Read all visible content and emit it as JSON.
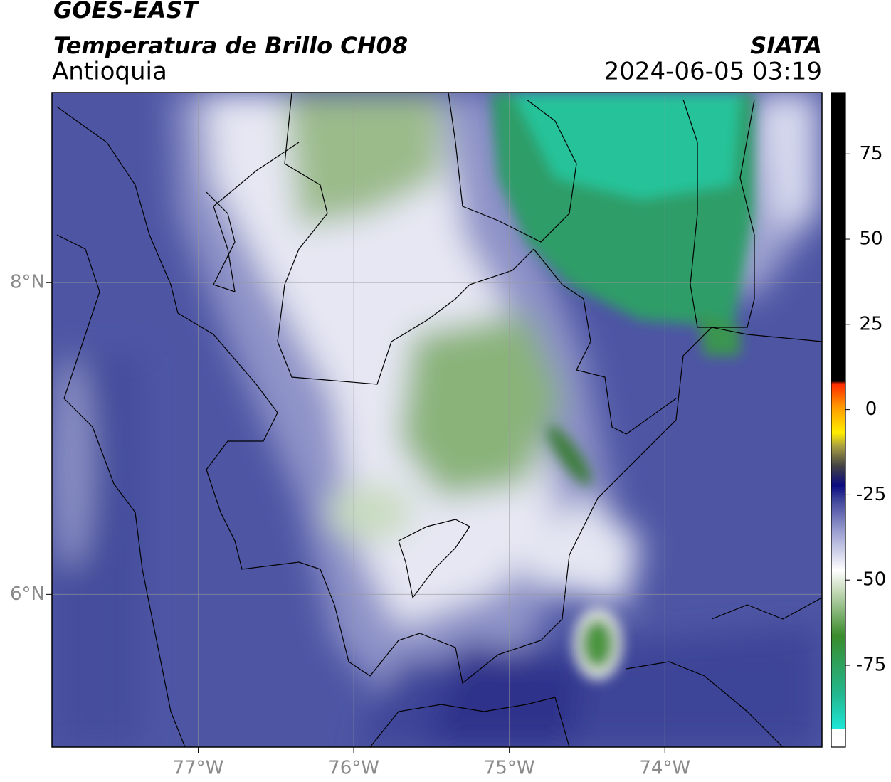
{
  "header": {
    "title": "GOES-EAST",
    "subtitle": "Temperatura de Brillo CH08",
    "region": "Antioquia",
    "source": "SIATA",
    "datetime": "2024-06-05 03:19"
  },
  "map": {
    "xlim": [
      -77.94,
      -72.99
    ],
    "ylim": [
      5.02,
      9.22
    ],
    "xticks": [
      {
        "value": -77,
        "label": "77°W"
      },
      {
        "value": -76,
        "label": "76°W"
      },
      {
        "value": -75,
        "label": "75°W"
      },
      {
        "value": -74,
        "label": "74°W"
      }
    ],
    "yticks": [
      {
        "value": 6,
        "label": "6°N"
      },
      {
        "value": 8,
        "label": "8°N"
      }
    ],
    "grid": true
  },
  "colorbar": {
    "lim": [
      -99,
      93
    ],
    "ticks": [
      75,
      50,
      25,
      0,
      -25,
      -50,
      -75
    ]
  }
}
